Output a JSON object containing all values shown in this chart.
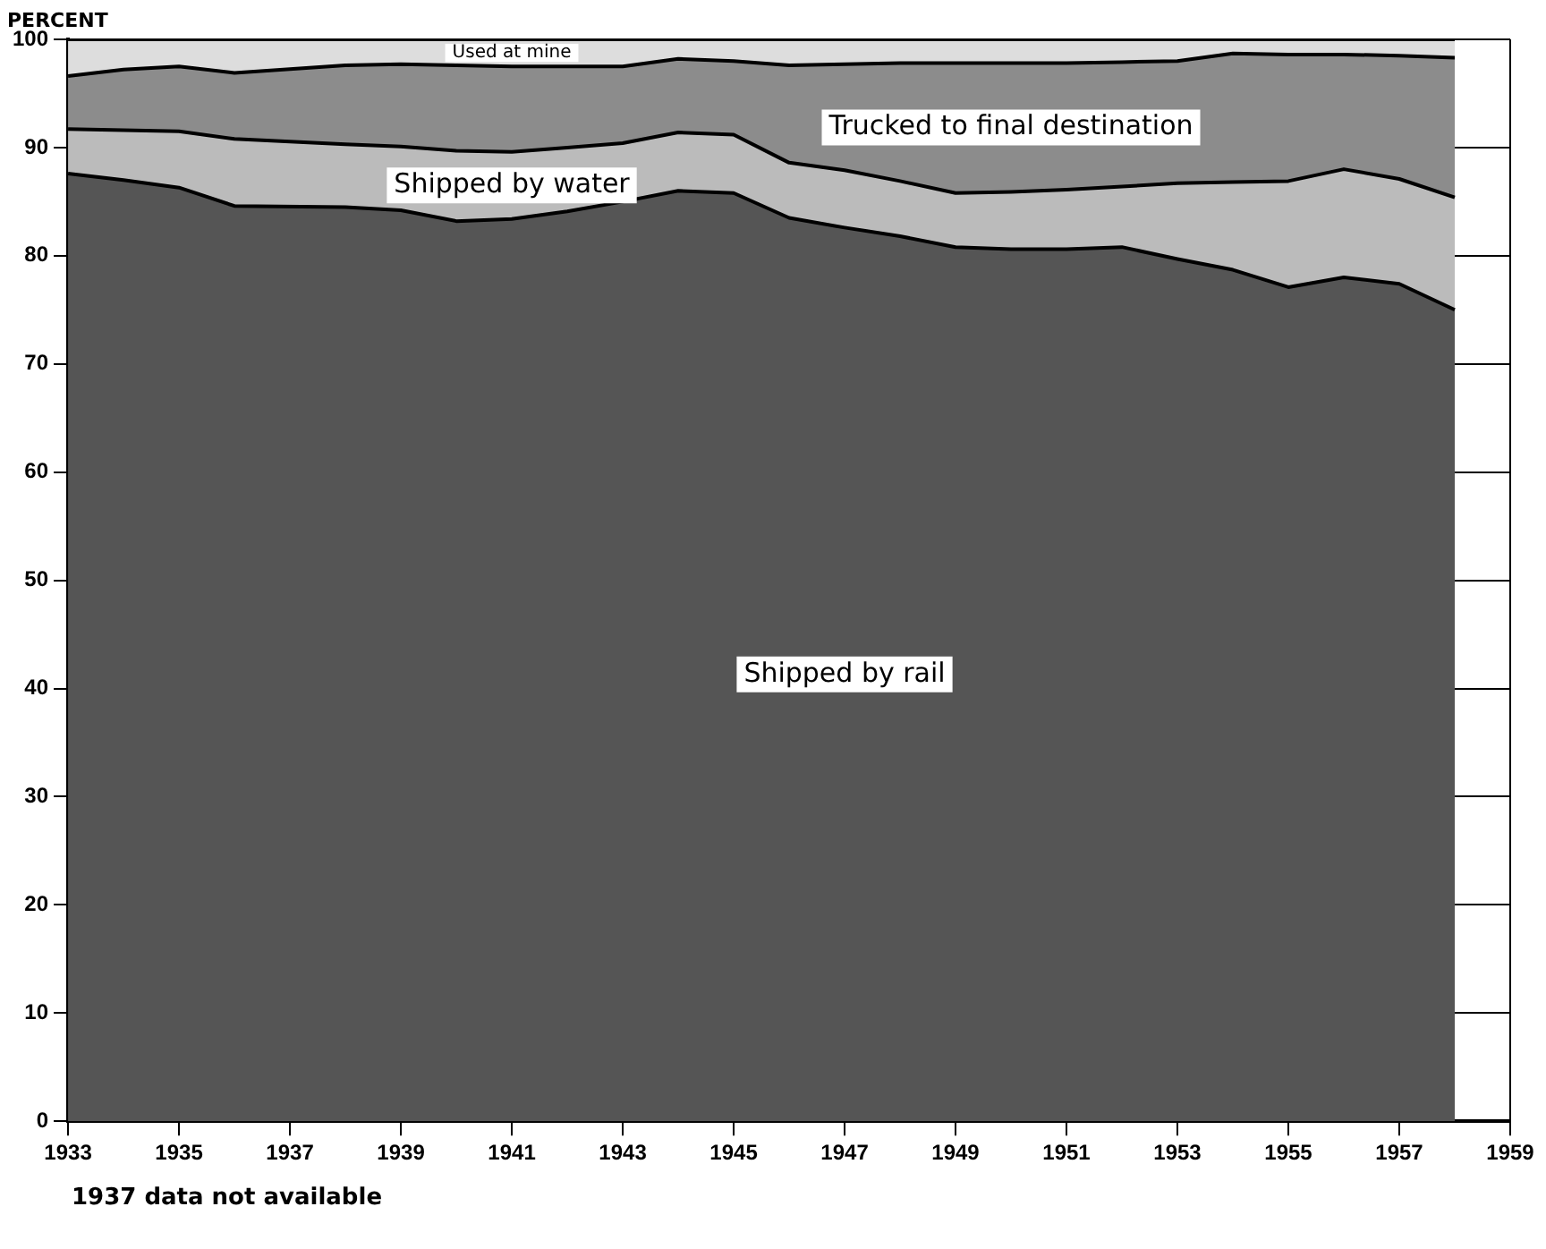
{
  "chart_data": {
    "type": "area",
    "stacked": true,
    "ylabel": "PERCENT",
    "x": [
      1933,
      1934,
      1935,
      1936,
      1938,
      1939,
      1940,
      1941,
      1942,
      1943,
      1944,
      1945,
      1946,
      1947,
      1948,
      1949,
      1950,
      1951,
      1952,
      1953,
      1954,
      1955,
      1956,
      1957,
      1958
    ],
    "series": [
      {
        "name": "Shipped by rail",
        "color": "#555555",
        "values": [
          87.6,
          87.0,
          86.3,
          84.6,
          84.5,
          84.2,
          83.2,
          83.4,
          84.1,
          85.0,
          86.0,
          85.8,
          83.5,
          82.6,
          81.8,
          80.8,
          80.6,
          80.6,
          80.8,
          79.7,
          78.7,
          77.1,
          78.0,
          77.4,
          75.0
        ]
      },
      {
        "name": "Shipped by water",
        "color": "#bbbbbb",
        "values": [
          4.1,
          4.6,
          5.2,
          6.2,
          5.8,
          5.9,
          6.5,
          6.2,
          5.9,
          5.4,
          5.4,
          5.4,
          5.1,
          5.3,
          5.1,
          5.0,
          5.3,
          5.5,
          5.6,
          7.0,
          8.1,
          9.8,
          10.0,
          9.7,
          10.4
        ]
      },
      {
        "name": "Trucked to final destination",
        "color": "#8c8c8c",
        "values": [
          4.9,
          5.6,
          6.0,
          6.1,
          7.3,
          7.6,
          7.9,
          7.9,
          7.5,
          7.1,
          6.8,
          6.8,
          9.0,
          9.8,
          10.9,
          12.0,
          11.9,
          11.7,
          11.5,
          11.3,
          11.9,
          11.7,
          10.6,
          11.4,
          12.9
        ]
      },
      {
        "name": "Used at mine",
        "color": "#dddddd",
        "values": [
          3.4,
          2.8,
          2.5,
          3.1,
          2.4,
          2.3,
          2.4,
          2.5,
          2.5,
          2.5,
          1.8,
          2.0,
          2.4,
          2.3,
          2.2,
          2.2,
          2.2,
          2.2,
          2.1,
          2.0,
          1.3,
          1.4,
          1.4,
          1.5,
          1.7
        ]
      }
    ],
    "xlim": [
      1933,
      1959
    ],
    "xticks": [
      1933,
      1935,
      1937,
      1939,
      1941,
      1943,
      1945,
      1947,
      1949,
      1951,
      1953,
      1955,
      1957,
      1959
    ],
    "ylim": [
      0,
      100
    ],
    "yticks": [
      0,
      10,
      20,
      30,
      40,
      50,
      60,
      70,
      80,
      90,
      100
    ],
    "grid": true,
    "legend": false,
    "annotations": [
      "1937 data not available"
    ]
  }
}
